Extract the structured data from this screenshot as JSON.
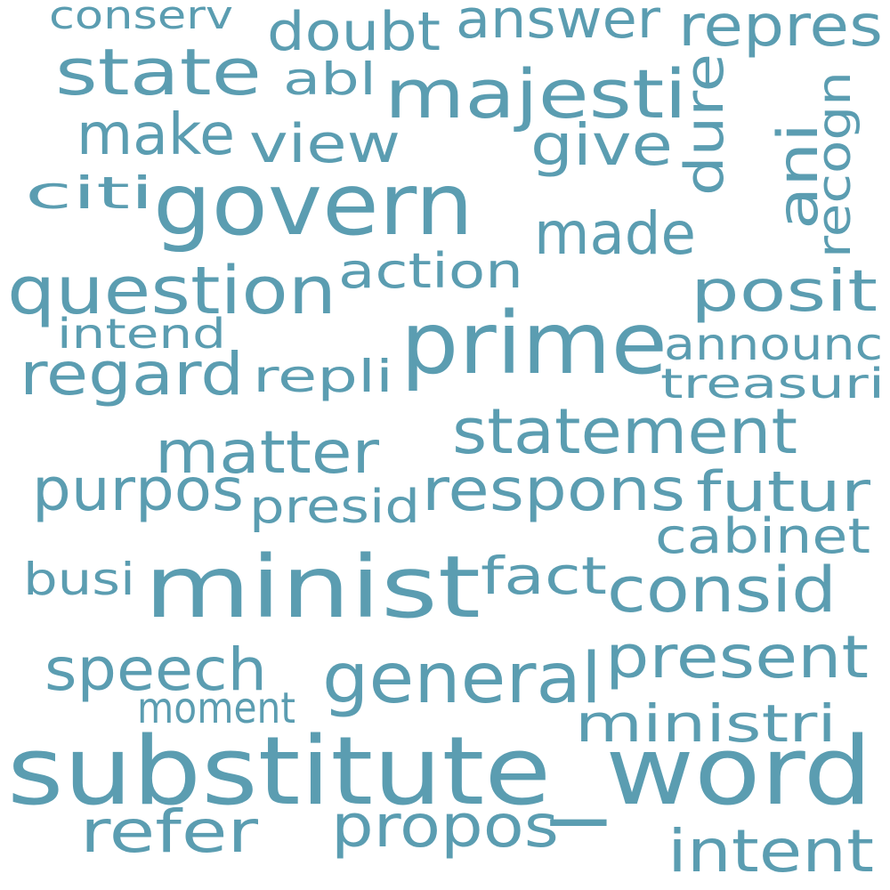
{
  "colors": {
    "word": "#5b9db1",
    "background": "#ffffff"
  },
  "words": [
    "conserv",
    "doubt",
    "answer",
    "repres",
    "state",
    "abl",
    "majesti",
    "make",
    "view",
    "give",
    "dure",
    "ani",
    "recogn",
    "citi",
    "govern",
    "made",
    "question",
    "action",
    "posit",
    "prime",
    "intend",
    "announc",
    "regard",
    "repli",
    "treasuri",
    "statement",
    "matter",
    "purpos",
    "respons",
    "futur",
    "presid",
    "cabinet",
    "minist",
    "fact",
    "busi",
    "consid",
    "present",
    "speech",
    "general",
    "moment",
    "ministri",
    "substitute_word",
    "refer",
    "propos",
    "intent"
  ]
}
